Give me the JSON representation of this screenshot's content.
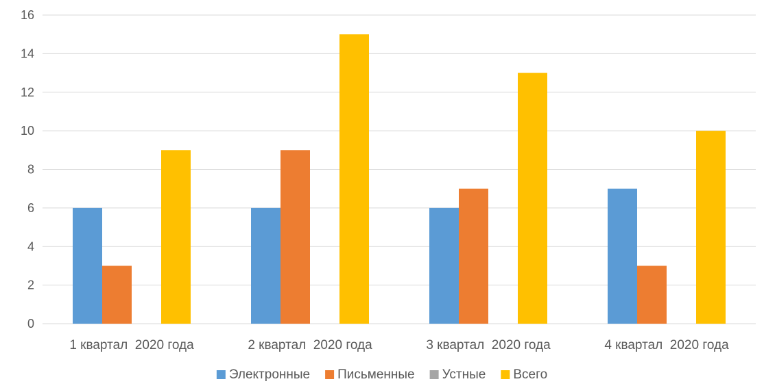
{
  "chart_data": {
    "type": "bar",
    "categories": [
      "1 квартал  2020 года",
      "2 квартал  2020 года",
      "3 квартал  2020 года",
      "4 квартал  2020 года"
    ],
    "series": [
      {
        "name": "Электронные",
        "values": [
          6,
          6,
          6,
          7
        ],
        "color": "#5B9BD5"
      },
      {
        "name": "Письменные",
        "values": [
          3,
          9,
          7,
          3
        ],
        "color": "#ED7D31"
      },
      {
        "name": "Устные",
        "values": [
          0,
          0,
          0,
          0
        ],
        "color": "#A5A5A5"
      },
      {
        "name": "Всего",
        "values": [
          9,
          15,
          13,
          10
        ],
        "color": "#FFC000"
      }
    ],
    "ylim": [
      0,
      16
    ],
    "yticks": [
      0,
      2,
      4,
      6,
      8,
      10,
      12,
      14,
      16
    ],
    "grid": true,
    "legend_position": "bottom",
    "title": "",
    "xlabel": "",
    "ylabel": ""
  }
}
